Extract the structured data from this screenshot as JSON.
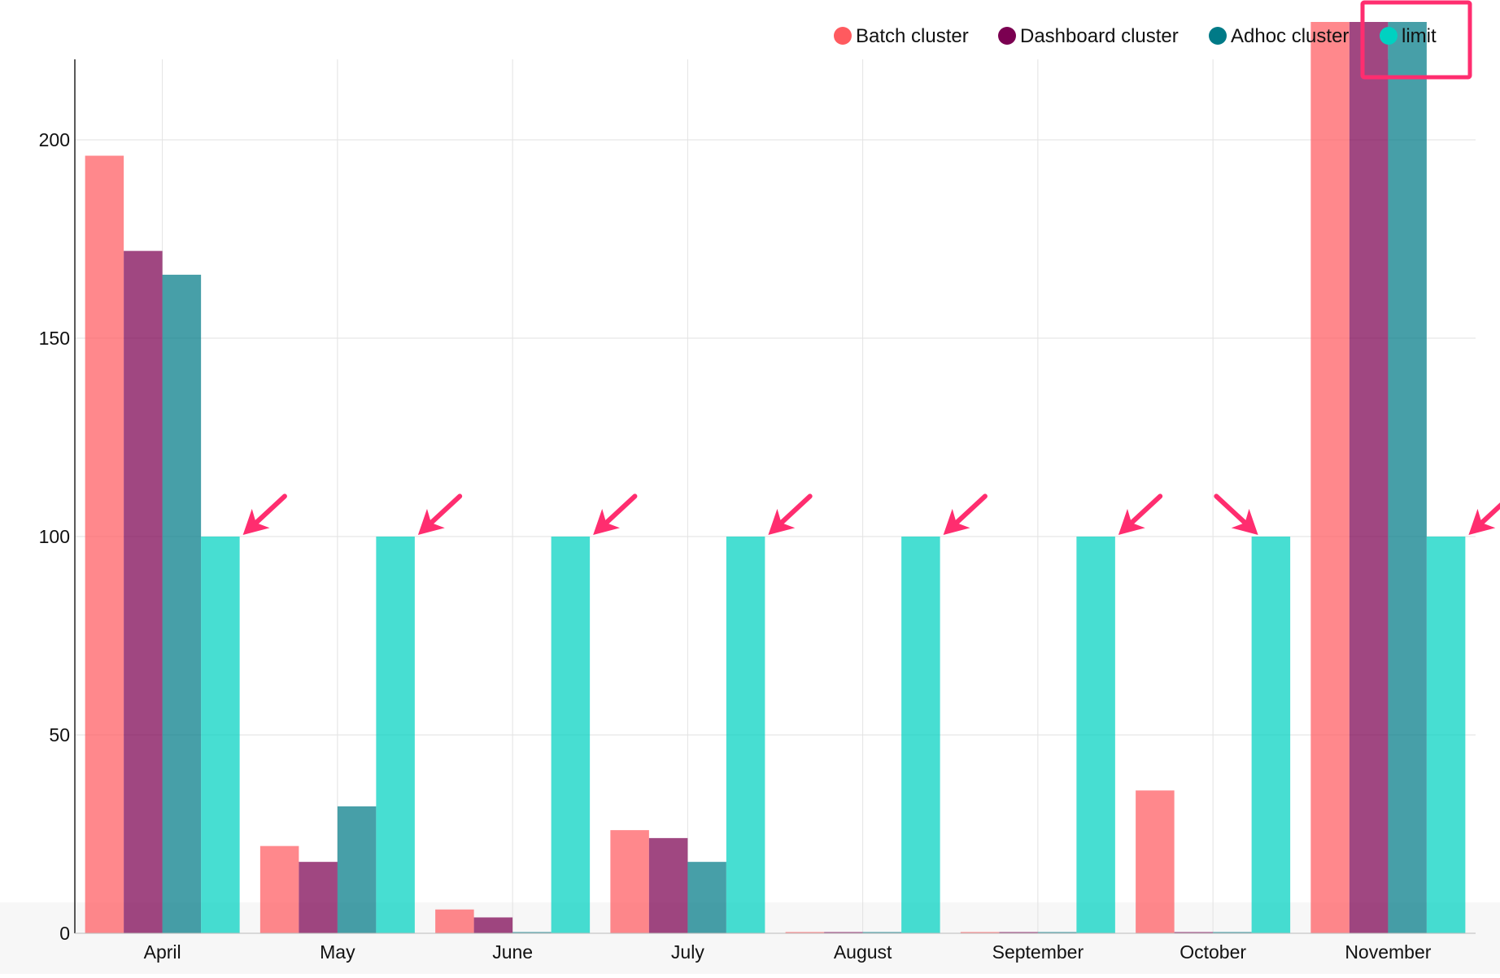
{
  "chart_data": {
    "type": "bar",
    "title": "",
    "xlabel": "",
    "ylabel": "",
    "ylim": [
      0,
      220
    ],
    "yticks": [
      0,
      50,
      100,
      150,
      200
    ],
    "categories": [
      "April",
      "May",
      "June",
      "July",
      "August",
      "September",
      "October",
      "November"
    ],
    "series": [
      {
        "name": "Batch cluster",
        "color": "#ff5a5f",
        "values": [
          196,
          22,
          6,
          26,
          0.3,
          0.3,
          36,
          230
        ]
      },
      {
        "name": "Dashboard cluster",
        "color": "#7b0051",
        "values": [
          172,
          18,
          4,
          24,
          0.3,
          0.3,
          0.3,
          230
        ]
      },
      {
        "name": "Adhoc cluster",
        "color": "#007a87",
        "values": [
          166,
          32,
          0.3,
          18,
          0.3,
          0.3,
          0.3,
          230
        ]
      },
      {
        "name": "limit",
        "color": "#00d1c1",
        "values": [
          100,
          100,
          100,
          100,
          100,
          100,
          100,
          100
        ]
      }
    ],
    "grid": true,
    "legend_position": "top-right",
    "annotations": {
      "arrow_color": "#ff2d6f",
      "arrows_point_to": "limit bar top in each month",
      "highlight_box": "around legend entry 'limit'"
    }
  }
}
